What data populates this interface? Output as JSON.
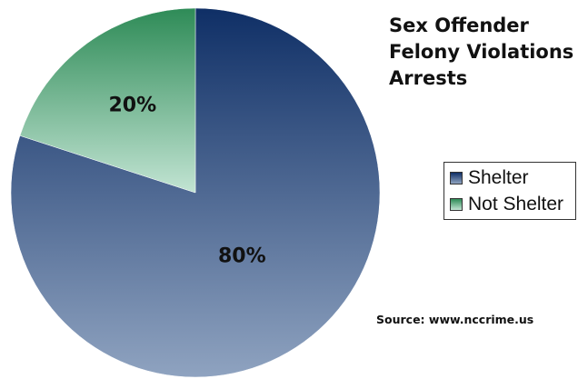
{
  "chart_data": {
    "type": "pie",
    "title_lines": [
      "Sex Offender",
      "Felony Violations",
      "Arrests"
    ],
    "categories": [
      "Shelter",
      "Not Shelter"
    ],
    "values": [
      80,
      20
    ],
    "data_labels": [
      "80%",
      "20%"
    ],
    "colors": {
      "Shelter": {
        "top": "#0f2f66",
        "bottom": "#8fa3c0"
      },
      "Not Shelter": {
        "top": "#2e8b57",
        "bottom": "#c2e4d3"
      }
    },
    "legend_position": "right",
    "source": "Source: www.nccrime.us"
  }
}
